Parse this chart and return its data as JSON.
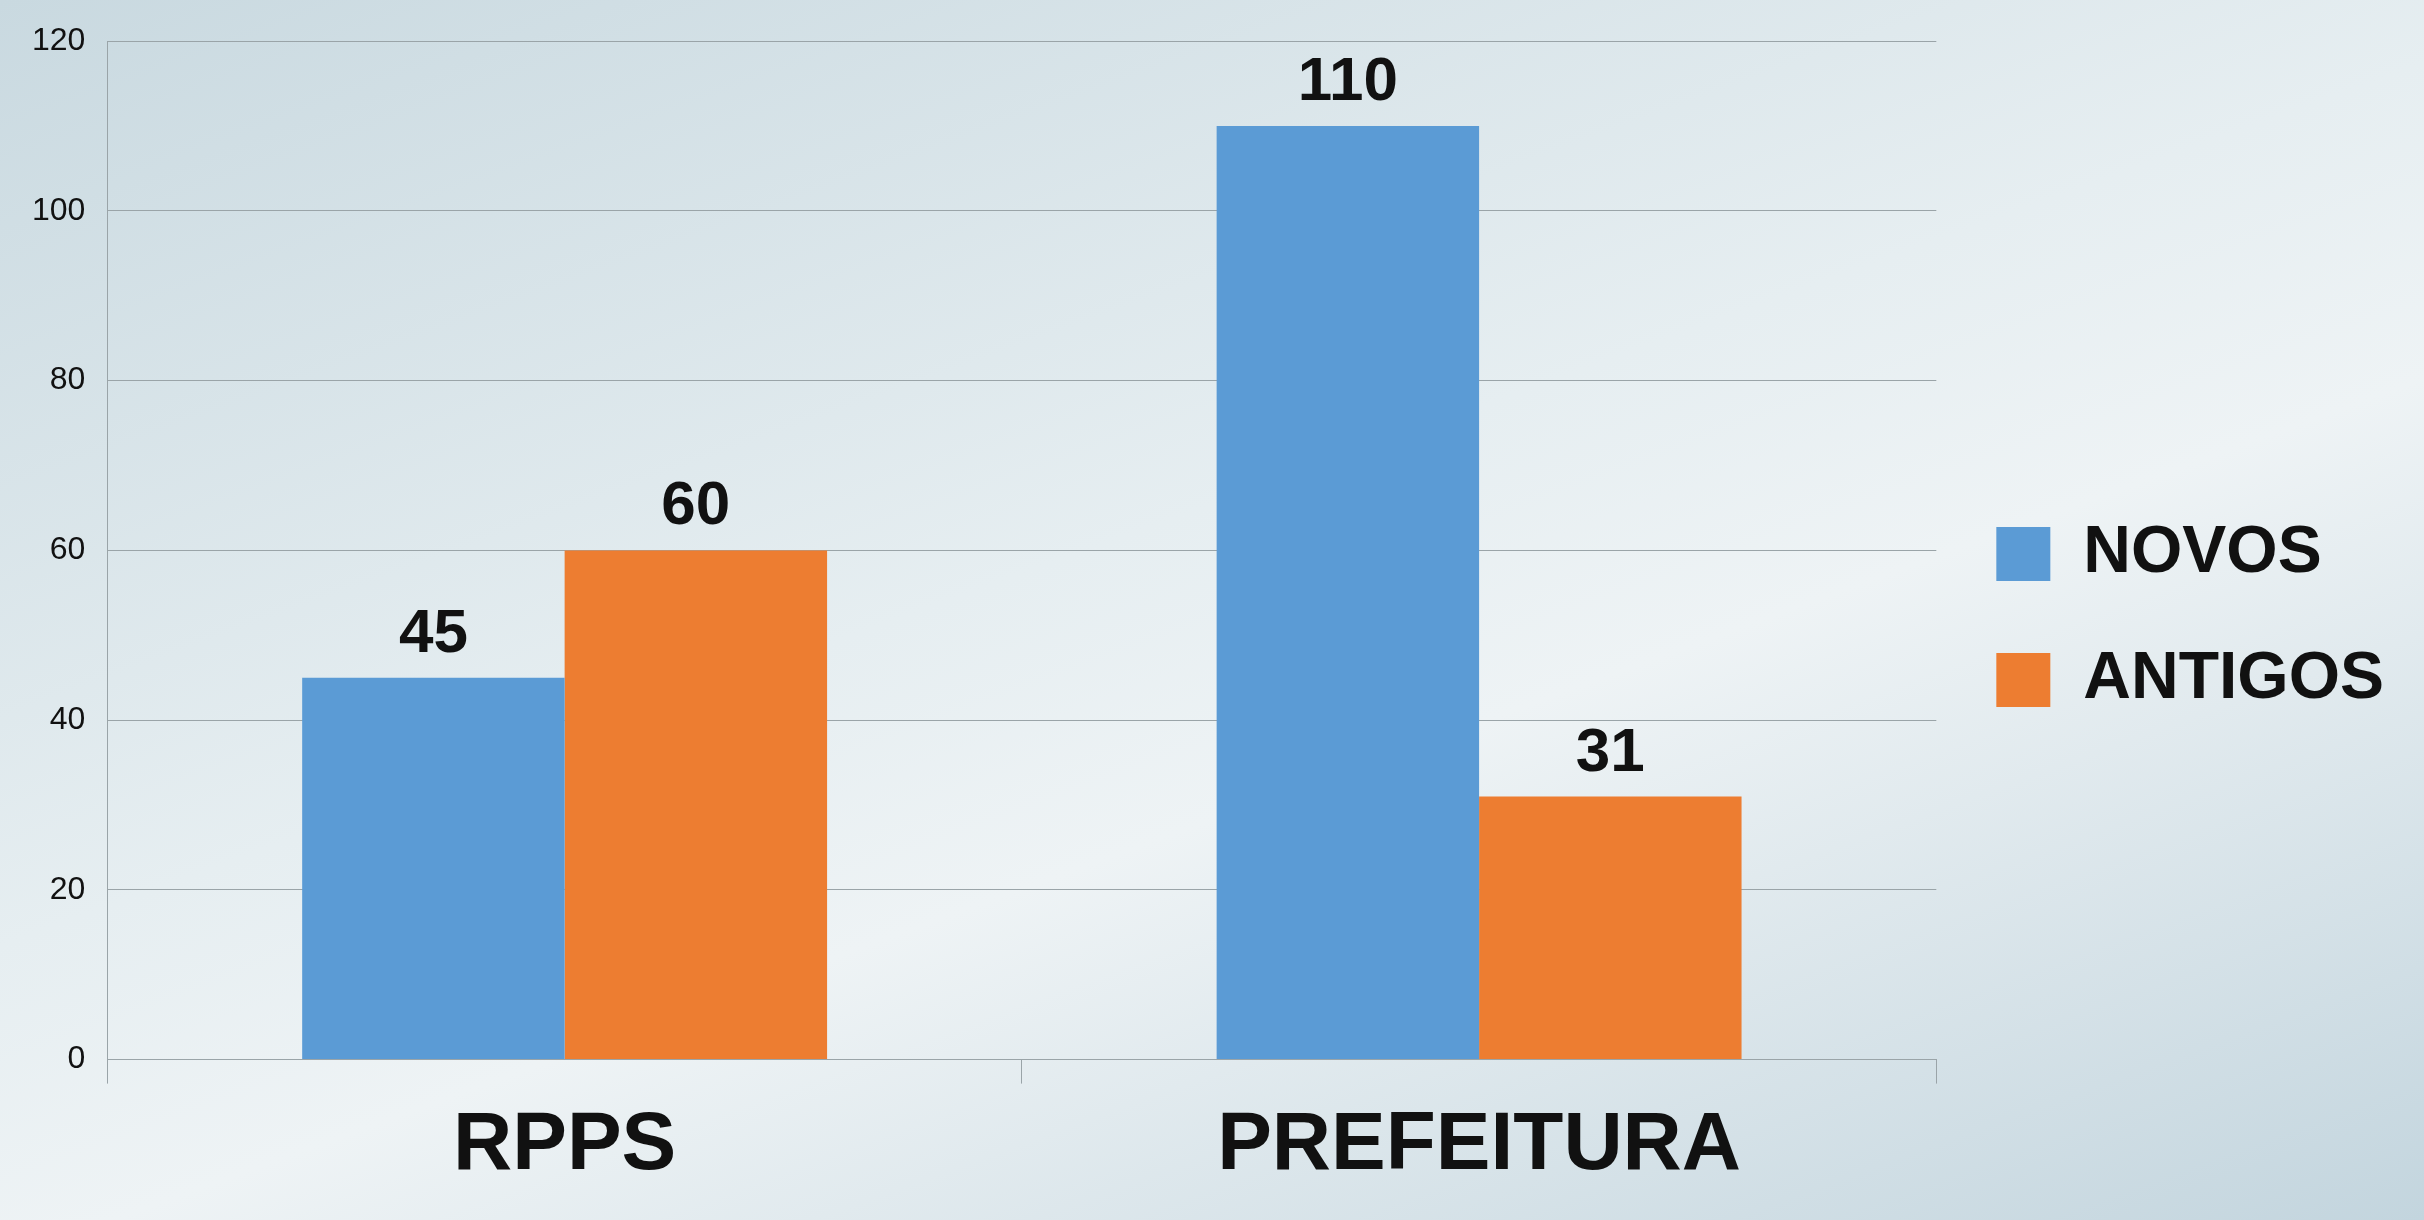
{
  "chart_data": {
    "type": "bar",
    "categories": [
      "RPPS",
      "PREFEITURA"
    ],
    "series": [
      {
        "name": "NOVOS",
        "color": "#5b9bd5",
        "values": [
          45,
          110
        ]
      },
      {
        "name": "ANTIGOS",
        "color": "#ed7d31",
        "values": [
          60,
          31
        ]
      }
    ],
    "ylim": [
      0,
      120
    ],
    "yticks": [
      0,
      20,
      40,
      60,
      80,
      100,
      120
    ],
    "grid": "y",
    "legend": "right",
    "data_labels": true
  }
}
